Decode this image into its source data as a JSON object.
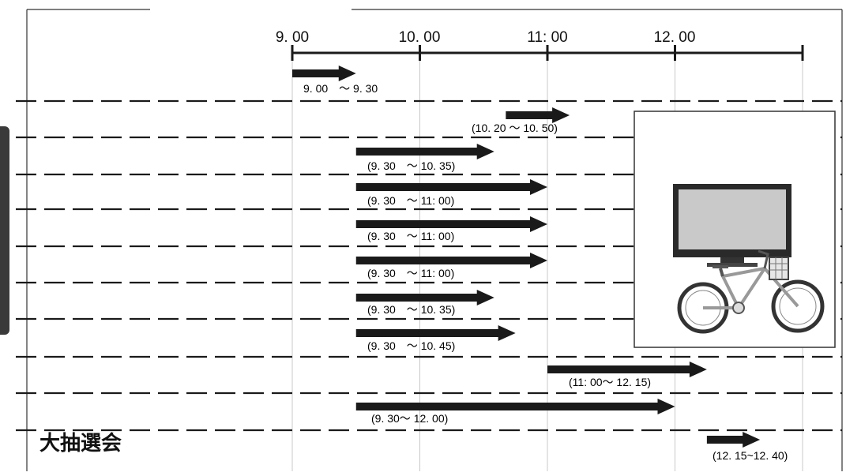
{
  "timeline": {
    "ticks": [
      "9. 00",
      "10. 00",
      "11: 00",
      "12. 00"
    ]
  },
  "rows": [
    {
      "label": "9. 00　～ 9. 30",
      "start": "9:00",
      "end": "9:30"
    },
    {
      "label": "(10. 20 ～ 10. 50)",
      "start": "10:20",
      "end": "10:50"
    },
    {
      "label": "(9. 30　～ 10. 35)",
      "start": "9:30",
      "end": "10:35"
    },
    {
      "label": "(9. 30　～ 11: 00)",
      "start": "9:30",
      "end": "11:00"
    },
    {
      "label": "(9. 30　～ 11: 00)",
      "start": "9:30",
      "end": "11:00"
    },
    {
      "label": "(9. 30　～ 11: 00)",
      "start": "9:30",
      "end": "11:00"
    },
    {
      "label": "(9. 30　～ 10. 35)",
      "start": "9:30",
      "end": "10:35"
    },
    {
      "label": "(9. 30　～ 10. 45)",
      "start": "9:30",
      "end": "10:45"
    },
    {
      "label": "(11: 00～ 12. 15)",
      "start": "11:00",
      "end": "12:15"
    },
    {
      "label": "(9. 30～ 12. 00)",
      "start": "9:30",
      "end": "12:00"
    },
    {
      "label": "(12. 15~12. 40)",
      "start": "12:15",
      "end": "12:40"
    }
  ],
  "grand_lottery": {
    "label": "大抽選会"
  },
  "prize_image": {
    "items": [
      "tv-icon",
      "bicycle-icon"
    ]
  },
  "colors": {
    "arrow": "#1a1a1a",
    "dash": "#1a1a1a",
    "grid": "#c8c8c8",
    "tv_screen": "#c9c9c9"
  }
}
